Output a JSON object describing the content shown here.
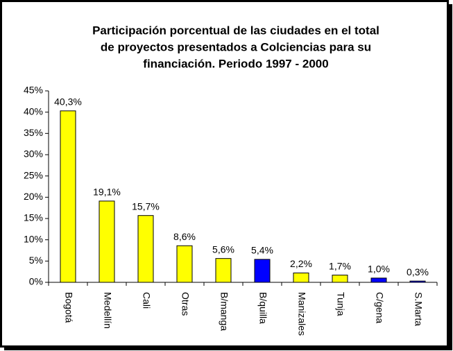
{
  "chart_data": {
    "type": "bar",
    "title": [
      "Participación porcentual de las ciudades en el total",
      "de proyectos presentados a Colciencias para su",
      "financiación. Periodo 1997 - 2000"
    ],
    "categories": [
      "Bogotá",
      "Medellín",
      "Cali",
      "Otras",
      "B/manga",
      "B/quilla",
      "Manizales",
      "Tunja",
      "C/gena",
      "S.Marta"
    ],
    "values": [
      40.3,
      19.1,
      15.7,
      8.6,
      5.6,
      5.4,
      2.2,
      1.7,
      1.0,
      0.3
    ],
    "value_labels": [
      "40,3%",
      "19,1%",
      "15,7%",
      "8,6%",
      "5,6%",
      "5,4%",
      "2,2%",
      "1,7%",
      "1,0%",
      "0,3%"
    ],
    "colors": [
      "#ffff00",
      "#ffff00",
      "#ffff00",
      "#ffff00",
      "#ffff00",
      "#0000ff",
      "#ffff00",
      "#ffff00",
      "#0000ff",
      "#0000ff"
    ],
    "ylim": [
      0,
      45
    ],
    "yticks": [
      {
        "value": 0,
        "label": "0%"
      },
      {
        "value": 5,
        "label": "5%"
      },
      {
        "value": 10,
        "label": "10%"
      },
      {
        "value": 15,
        "label": "15%"
      },
      {
        "value": 20,
        "label": "20%"
      },
      {
        "value": 25,
        "label": "25%"
      },
      {
        "value": 30,
        "label": "30%"
      },
      {
        "value": 35,
        "label": "35%"
      },
      {
        "value": 40,
        "label": "40%"
      },
      {
        "value": 45,
        "label": "45%"
      }
    ],
    "grid": false
  }
}
